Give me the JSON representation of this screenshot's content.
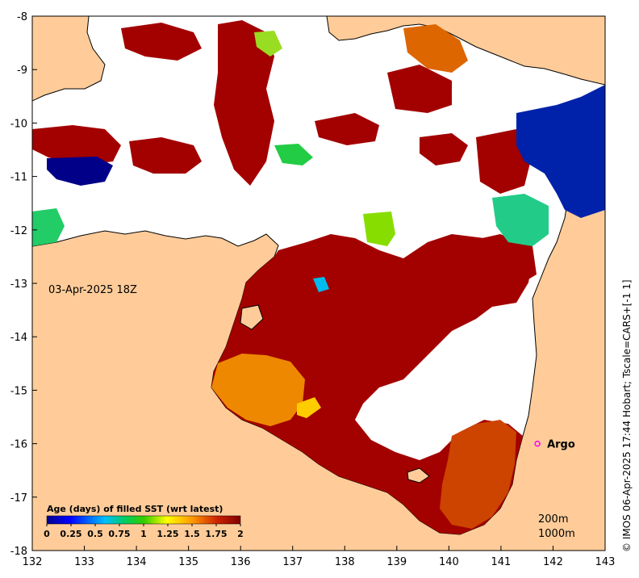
{
  "map": {
    "date_label": "03-Apr-2025 18Z",
    "lon_ticks": [
      "132",
      "133",
      "134",
      "135",
      "136",
      "137",
      "138",
      "139",
      "140",
      "141",
      "142",
      "143"
    ],
    "lat_ticks": [
      "-8",
      "-9",
      "-10",
      "-11",
      "-12",
      "-13",
      "-14",
      "-15",
      "-16",
      "-17",
      "-18"
    ],
    "colors": {
      "land": "#FFCC99",
      "ocean_nodata": "#FFFFFF",
      "old_sst": "#A30000",
      "argo_marker": "#FF00FF"
    }
  },
  "argo": {
    "label": "Argo",
    "lon": 141.7,
    "lat": -16.0
  },
  "legend": {
    "title": "Age (days) of filled SST (wrt latest)",
    "ticks": [
      "0",
      "0.25",
      "0.5",
      "0.75",
      "1",
      "1.25",
      "1.5",
      "1.75",
      "2"
    ],
    "range": [
      0,
      2
    ]
  },
  "contours": {
    "label_200": "200m",
    "label_1000": "1000m"
  },
  "credit": "© IMOS 06-Apr-2025 17:44 Hobart; Tscale=CARS+[-1 1]"
}
